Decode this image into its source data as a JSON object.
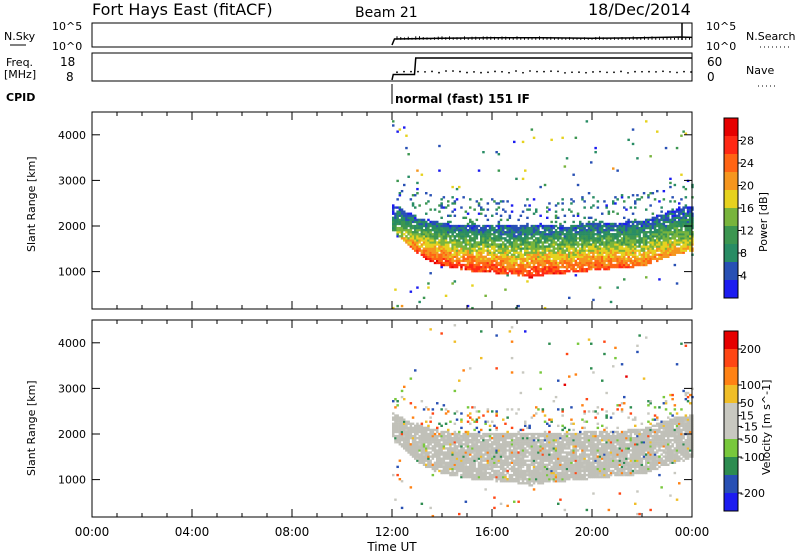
{
  "header": {
    "radar": "Fort Hays East (fitACF)",
    "beam": "Beam 21",
    "date": "18/Dec/2014"
  },
  "nsky_panel": {
    "left_label": "N.Sky",
    "left_ticks": [
      "10^5",
      "10^0"
    ],
    "right_label": "N.Search",
    "right_ticks": [
      "10^5",
      "10^0"
    ]
  },
  "freq_panel": {
    "left_label_line1": "Freq.",
    "left_label_line2": "[MHz]",
    "left_ticks": [
      "18",
      "8"
    ],
    "right_label": "Nave",
    "right_ticks": [
      "60",
      "0"
    ]
  },
  "cpid": {
    "label": "CPID",
    "mode_text": "normal (fast) 151 IF"
  },
  "colors": {
    "power_scale": [
      "#1c1cf0",
      "#2850b4",
      "#288c64",
      "#3c9650",
      "#78b43c",
      "#e6d21e",
      "#f5961e",
      "#ff6414",
      "#ff2814",
      "#e60000"
    ],
    "velocity_scale": [
      "#e60000",
      "#ff4614",
      "#ff8214",
      "#f0be28",
      "#c8c8c0",
      "#c8c8c0",
      "#78c83c",
      "#2d8c50",
      "#2850b4",
      "#1c1cf0"
    ],
    "ground_scatter": "#c0c0b8"
  },
  "chart_data": [
    {
      "type": "heatmap",
      "title": "Power",
      "ylabel": "Slant Range [km]",
      "xlabel": "Time UT",
      "x_ticks": [
        "00:00",
        "04:00",
        "08:00",
        "12:00",
        "16:00",
        "20:00",
        "00:00"
      ],
      "y_ticks": [
        1000,
        2000,
        3000,
        4000
      ],
      "ylim": [
        180,
        4500
      ],
      "xlim_hours": [
        0,
        24
      ],
      "data_start_hour": 12.0,
      "colorbar": {
        "label": "Power [dB]",
        "ticks": [
          4,
          8,
          12,
          16,
          20,
          24,
          28
        ],
        "range": [
          0,
          32
        ]
      },
      "echo_band": {
        "time_hours": [
          12.0,
          12.5,
          13.0,
          13.5,
          14.0,
          14.5,
          15.0,
          15.5,
          16.0,
          17.0,
          17.5,
          18.0,
          19.0,
          20.0,
          21.0,
          22.0,
          23.0,
          23.7
        ],
        "lower_km": [
          1850,
          1600,
          1350,
          1200,
          1100,
          1050,
          1000,
          950,
          950,
          900,
          850,
          900,
          950,
          1000,
          1050,
          1100,
          1300,
          1400
        ],
        "upper_km": [
          2450,
          2300,
          2200,
          2100,
          2050,
          2000,
          2000,
          2000,
          2000,
          2000,
          2000,
          2000,
          2000,
          2050,
          2050,
          2100,
          2300,
          2400
        ],
        "peak_power_db": [
          12,
          22,
          26,
          28,
          28,
          28,
          28,
          28,
          28,
          26,
          28,
          28,
          26,
          26,
          26,
          24,
          22,
          20
        ]
      }
    },
    {
      "type": "heatmap",
      "title": "Velocity",
      "ylabel": "Slant Range [km]",
      "xlabel": "Time UT",
      "x_ticks": [
        "00:00",
        "04:00",
        "08:00",
        "12:00",
        "16:00",
        "20:00",
        "00:00"
      ],
      "y_ticks": [
        1000,
        2000,
        3000,
        4000
      ],
      "ylim": [
        180,
        4500
      ],
      "xlim_hours": [
        0,
        24
      ],
      "data_start_hour": 12.0,
      "colorbar": {
        "label": "Velocity [m s^-1]",
        "ticks": [
          200,
          100,
          50,
          15,
          -15,
          -50,
          -100,
          -200
        ],
        "range": [
          -250,
          250
        ]
      },
      "dominant_value_m_s": 0,
      "note_band_same_as_power": true
    },
    {
      "type": "line",
      "title": "N.Sky / N.Search",
      "series": [
        {
          "name": "N.Sky",
          "x_hours": [
            12.0,
            12.1,
            14,
            16,
            18,
            20,
            22,
            23.5,
            24
          ],
          "values_log10": [
            0,
            1.5,
            1.7,
            1.8,
            1.8,
            1.7,
            1.8,
            2.0,
            1.9
          ]
        }
      ]
    },
    {
      "type": "line",
      "title": "Freq. / Nave",
      "series": [
        {
          "name": "Freq. [MHz]",
          "x_hours": [
            12.0,
            12.05,
            12.9,
            12.95,
            24
          ],
          "values": [
            8,
            10.5,
            10.5,
            18,
            18
          ]
        },
        {
          "name": "Nave",
          "x_hours": [
            12.0,
            24
          ],
          "values": [
            14,
            14
          ]
        }
      ]
    }
  ]
}
